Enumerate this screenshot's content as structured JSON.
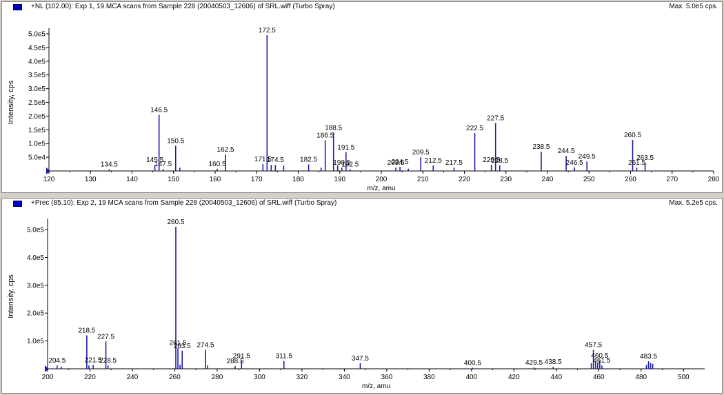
{
  "panels": [
    {
      "id": "p1",
      "title": "+NL (102.00): Exp 1, 19 MCA scans from Sample 228 (20040503_12606) of SRL.wiff (Turbo Spray)",
      "max_label": "Max. 5.0e5 cps.",
      "colors": {
        "peak": "#1c1ca8",
        "marker": "#0000c0"
      }
    },
    {
      "id": "p2",
      "title": "+Prec (85.10): Exp 2, 19 MCA scans from Sample 228 (20040503_12606) of SRL.wiff (Turbo Spray)",
      "max_label": "Max. 5.2e5 cps.",
      "colors": {
        "peak": "#1c1ca8",
        "marker": "#0000c0"
      }
    }
  ],
  "chart_data": [
    {
      "type": "bar",
      "xlabel": "m/z, amu",
      "ylabel": "Intensity, cps",
      "xlim": [
        120,
        280
      ],
      "ylim": [
        0,
        500000
      ],
      "x_ticks": [
        120,
        130,
        140,
        150,
        160,
        170,
        180,
        190,
        200,
        210,
        220,
        230,
        240,
        250,
        260,
        270,
        280
      ],
      "y_ticks": [
        {
          "v": 50000,
          "label": "5.0e4"
        },
        {
          "v": 100000,
          "label": "1.0e5"
        },
        {
          "v": 150000,
          "label": "1.5e5"
        },
        {
          "v": 200000,
          "label": "2.0e5"
        },
        {
          "v": 250000,
          "label": "2.5e5"
        },
        {
          "v": 300000,
          "label": "3.0e5"
        },
        {
          "v": 350000,
          "label": "3.5e5"
        },
        {
          "v": 400000,
          "label": "4.0e5"
        },
        {
          "v": 450000,
          "label": "4.5e5"
        },
        {
          "v": 500000,
          "label": "5.0e5"
        }
      ],
      "peaks": [
        {
          "x": 134.5,
          "y": 6000,
          "label": "134.5"
        },
        {
          "x": 145.5,
          "y": 22000,
          "label": "145.5"
        },
        {
          "x": 146.5,
          "y": 205000,
          "label": "146.5"
        },
        {
          "x": 147.5,
          "y": 7000,
          "label": "147.5"
        },
        {
          "x": 150.5,
          "y": 92000,
          "label": "150.5"
        },
        {
          "x": 151.5,
          "y": 12000
        },
        {
          "x": 160.5,
          "y": 8000,
          "label": "160.5"
        },
        {
          "x": 162.5,
          "y": 60000,
          "label": "162.5"
        },
        {
          "x": 171.5,
          "y": 25000,
          "label": "171.5"
        },
        {
          "x": 172.5,
          "y": 495000,
          "label": "172.5"
        },
        {
          "x": 173.5,
          "y": 22000
        },
        {
          "x": 174.5,
          "y": 22000,
          "label": "174.5"
        },
        {
          "x": 176.5,
          "y": 20000
        },
        {
          "x": 182.5,
          "y": 24000,
          "label": "182.5"
        },
        {
          "x": 185.5,
          "y": 12000
        },
        {
          "x": 186.5,
          "y": 112000,
          "label": "186.5"
        },
        {
          "x": 188.5,
          "y": 140000,
          "label": "188.5"
        },
        {
          "x": 189.5,
          "y": 20000
        },
        {
          "x": 190.5,
          "y": 12000,
          "label": "190.5"
        },
        {
          "x": 191.5,
          "y": 68000,
          "label": "191.5"
        },
        {
          "x": 192.5,
          "y": 6000,
          "label": "192.5"
        },
        {
          "x": 203.5,
          "y": 12000,
          "label": "203.5"
        },
        {
          "x": 204.5,
          "y": 15000,
          "label": "204.5"
        },
        {
          "x": 206.5,
          "y": 8000
        },
        {
          "x": 209.5,
          "y": 50000,
          "label": "209.5"
        },
        {
          "x": 212.5,
          "y": 20000,
          "label": "212.5"
        },
        {
          "x": 217.5,
          "y": 12000,
          "label": "217.5"
        },
        {
          "x": 222.5,
          "y": 138000,
          "label": "222.5"
        },
        {
          "x": 226.5,
          "y": 22000,
          "label": "226.5"
        },
        {
          "x": 227.5,
          "y": 175000,
          "label": "227.5"
        },
        {
          "x": 228.5,
          "y": 20000,
          "label": "228.5"
        },
        {
          "x": 238.5,
          "y": 70000,
          "label": "238.5"
        },
        {
          "x": 244.5,
          "y": 55000,
          "label": "244.5"
        },
        {
          "x": 246.5,
          "y": 13000,
          "label": "246.5"
        },
        {
          "x": 249.5,
          "y": 35000,
          "label": "249.5"
        },
        {
          "x": 260.5,
          "y": 113000,
          "label": "260.5"
        },
        {
          "x": 261.5,
          "y": 12000,
          "label": "261.5"
        },
        {
          "x": 263.5,
          "y": 30000,
          "label": "263.5"
        }
      ]
    },
    {
      "type": "bar",
      "xlabel": "m/z, amu",
      "ylabel": "Intensity, cps",
      "xlim": [
        200,
        510
      ],
      "ylim": [
        0,
        520000
      ],
      "x_ticks": [
        200,
        220,
        240,
        260,
        280,
        300,
        320,
        340,
        360,
        380,
        400,
        420,
        440,
        460,
        480,
        500
      ],
      "y_ticks": [
        {
          "v": 100000,
          "label": "1.0e5"
        },
        {
          "v": 200000,
          "label": "2.0e5"
        },
        {
          "v": 300000,
          "label": "3.0e5"
        },
        {
          "v": 400000,
          "label": "4.0e5"
        },
        {
          "v": 500000,
          "label": "5.0e5"
        }
      ],
      "peaks": [
        {
          "x": 204.5,
          "y": 12000,
          "label": "204.5"
        },
        {
          "x": 206.5,
          "y": 8000
        },
        {
          "x": 218.5,
          "y": 120000,
          "label": "218.5"
        },
        {
          "x": 219.5,
          "y": 12000
        },
        {
          "x": 221.5,
          "y": 14000,
          "label": "221.5"
        },
        {
          "x": 227.5,
          "y": 98000,
          "label": "227.5"
        },
        {
          "x": 228.5,
          "y": 12000,
          "label": "228.5"
        },
        {
          "x": 260.5,
          "y": 510000,
          "label": "260.5"
        },
        {
          "x": 261.5,
          "y": 75000,
          "label": "261.5"
        },
        {
          "x": 262.5,
          "y": 15000
        },
        {
          "x": 263.5,
          "y": 65000,
          "label": "263.5"
        },
        {
          "x": 274.5,
          "y": 68000,
          "label": "274.5"
        },
        {
          "x": 275.5,
          "y": 12000
        },
        {
          "x": 288.5,
          "y": 10000,
          "label": "288.5"
        },
        {
          "x": 291.5,
          "y": 28000,
          "label": "291.5"
        },
        {
          "x": 311.5,
          "y": 28000,
          "label": "311.5"
        },
        {
          "x": 347.5,
          "y": 20000,
          "label": "347.5"
        },
        {
          "x": 400.5,
          "y": 4000,
          "label": "400.5"
        },
        {
          "x": 429.5,
          "y": 5000,
          "label": "429.5"
        },
        {
          "x": 438.5,
          "y": 7000,
          "label": "438.5"
        },
        {
          "x": 457.5,
          "y": 68000,
          "label": "457.5"
        },
        {
          "x": 456.5,
          "y": 20000
        },
        {
          "x": 458.5,
          "y": 25000
        },
        {
          "x": 459.5,
          "y": 22000
        },
        {
          "x": 460.5,
          "y": 30000,
          "label": "460.5"
        },
        {
          "x": 461.5,
          "y": 12000,
          "label": "461.5"
        },
        {
          "x": 483.5,
          "y": 27000,
          "label": "483.5"
        },
        {
          "x": 482.5,
          "y": 14000
        },
        {
          "x": 484.5,
          "y": 20000
        },
        {
          "x": 485.5,
          "y": 18000
        }
      ]
    }
  ]
}
